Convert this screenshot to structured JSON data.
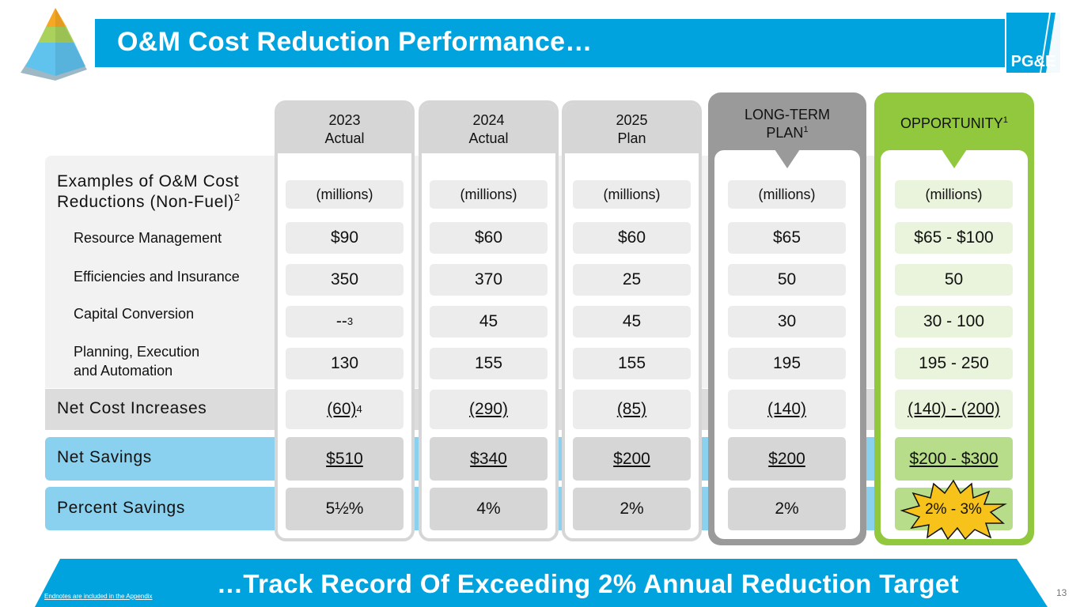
{
  "header": {
    "title": "O&M Cost Reduction Performance…"
  },
  "logo": {
    "text": "PG&E"
  },
  "columns": [
    {
      "line1": "2023",
      "line2": "Actual"
    },
    {
      "line1": "2024",
      "line2": "Actual"
    },
    {
      "line1": "2025",
      "line2": "Plan"
    },
    {
      "line1": "LONG-TERM",
      "line2": "PLAN",
      "sup": "1"
    },
    {
      "line1": "OPPORTUNITY",
      "sup": "1"
    }
  ],
  "units_label": "(millions)",
  "rows": {
    "examples": {
      "line1": "Examples of O&M Cost",
      "line2": "Reductions (Non-Fuel)",
      "sup": "2"
    },
    "resource": {
      "label": "Resource Management",
      "values": [
        "$90",
        "$60",
        "$60",
        "$65",
        "$65 - $100"
      ]
    },
    "efficiencies": {
      "label": "Efficiencies and Insurance",
      "values": [
        "350",
        "370",
        "25",
        "50",
        "50"
      ]
    },
    "capital": {
      "label": "Capital Conversion",
      "values": [
        "--",
        "45",
        "45",
        "30",
        "30 - 100"
      ],
      "first_sup": "3"
    },
    "planning": {
      "line1": "Planning, Execution",
      "line2": "and Automation",
      "values": [
        "130",
        "155",
        "155",
        "195",
        "195 - 250"
      ]
    },
    "netcost": {
      "label": "Net Cost Increases",
      "values": [
        "(60)",
        "(290)",
        "(85)",
        "(140)",
        "(140) - (200)"
      ],
      "first_sup": "4"
    },
    "netsavings": {
      "label": "Net Savings",
      "values": [
        "$510",
        "$340",
        "$200",
        "$200",
        "$200 - $300"
      ]
    },
    "percent": {
      "label": "Percent Savings",
      "values": [
        "5½%",
        "4%",
        "2%",
        "2%",
        "2% - 3%"
      ]
    }
  },
  "footer": {
    "tagline": "…Track Record Of Exceeding 2% Annual Reduction Target",
    "endnote": "Endnotes are included in the Appendix",
    "page_number": "13"
  },
  "colors": {
    "brand_blue": "#00a3dd",
    "light_blue": "#89d1ee",
    "green": "#92c83e",
    "gray": "#9a9a9a",
    "star_yellow": "#f7c31a"
  }
}
